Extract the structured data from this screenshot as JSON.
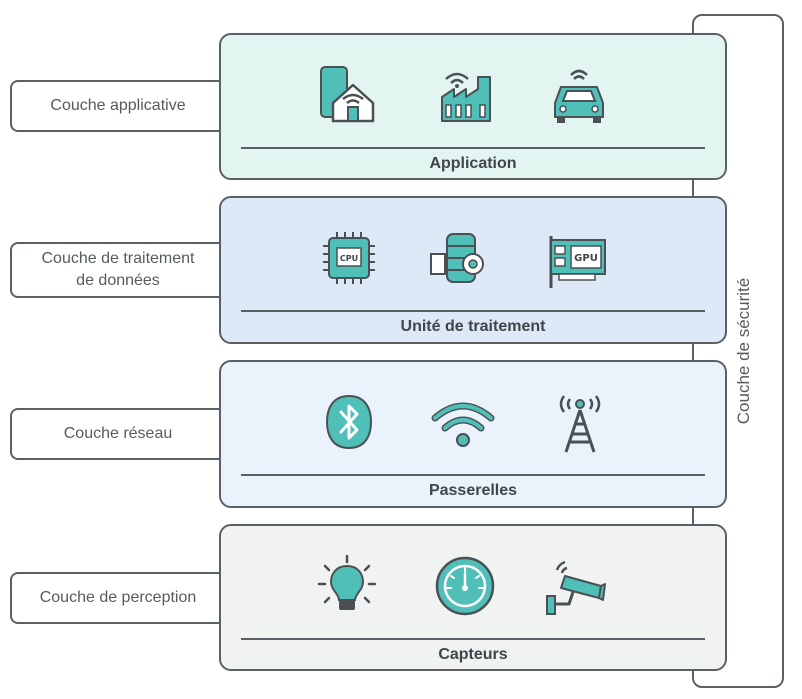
{
  "security_layer": {
    "label": "Couche de sécurité"
  },
  "layers": [
    {
      "side_label": "Couche applicative",
      "title": "Application",
      "background": "#e3f5f1",
      "icons": [
        "smart-home-phone-icon",
        "smart-factory-icon",
        "connected-car-icon"
      ]
    },
    {
      "side_label": "Couche de traitement\nde données",
      "title": "Unité de traitement",
      "background": "#dde9f6",
      "icons": [
        "cpu-chip-icon",
        "database-server-icon",
        "gpu-card-icon"
      ],
      "icon_texts": {
        "cpu": "CPU",
        "gpu": "GPU"
      }
    },
    {
      "side_label": "Couche réseau",
      "title": "Passerelles",
      "background": "#eaf3fb",
      "icons": [
        "bluetooth-icon",
        "wifi-icon",
        "radio-tower-icon"
      ]
    },
    {
      "side_label": "Couche de perception",
      "title": "Capteurs",
      "background": "#f1f3f3",
      "icons": [
        "light-bulb-sensor-icon",
        "gauge-dial-icon",
        "security-camera-icon"
      ]
    }
  ],
  "colors": {
    "accent": "#4fbfb8",
    "outline": "#5a6166",
    "text": "#555b60"
  }
}
